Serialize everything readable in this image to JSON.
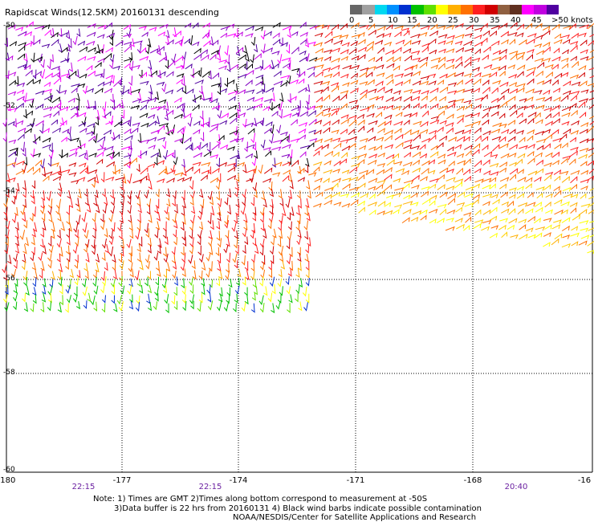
{
  "title": "Rapidscat Winds(12.5KM) 20160131 descending",
  "colorbar": {
    "colors": [
      "#666666",
      "#a0a0a0",
      "#00d8f0",
      "#0090ff",
      "#0030d0",
      "#00c000",
      "#60e000",
      "#ffff00",
      "#ffb000",
      "#ff7000",
      "#ff2020",
      "#d00000",
      "#906040",
      "#603020",
      "#ff00ff",
      "#c000e0",
      "#5000a0"
    ],
    "labels": [
      "0",
      "5",
      "10",
      "15",
      "20",
      "25",
      "30",
      "35",
      "40",
      "45",
      ">50 knots"
    ]
  },
  "axes": {
    "lon_ticks": [
      "-180",
      "-177",
      "-174",
      "-171",
      "-168",
      "-16"
    ],
    "lat_labels": [
      "-50",
      "-52",
      "-54",
      "-56",
      "-58",
      "-60"
    ],
    "times": [
      "22:15",
      "22:15",
      "20:40"
    ]
  },
  "notes": {
    "line1": "Note: 1) Times are GMT 2)Times along bottom correspond to measurement at -50S",
    "line2": "3)Data buffer is 22 hrs from 20160131 4) Black wind barbs indicate possible contamination",
    "line3": "NOAA/NESDIS/Center for Satellite Applications and Research"
  }
}
